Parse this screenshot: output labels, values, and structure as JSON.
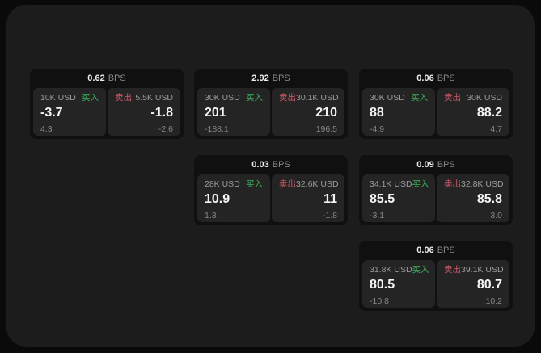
{
  "colors": {
    "buy_green": "#3fae5c",
    "sell_red": "#cf5a68",
    "panel_bg": "#1c1c1c",
    "card_bg": "#101011",
    "cell_bg": "#242425",
    "page_bg": "#0a0a0a"
  },
  "labels": {
    "buy": "买入",
    "sell": "卖出",
    "bps_suffix": "BPS"
  },
  "cards": [
    {
      "bps": "0.62",
      "col": 0,
      "row": 0,
      "buy": {
        "amount": "10K USD",
        "value": "-3.7",
        "delta": "4.3"
      },
      "sell": {
        "amount": "5.5K USD",
        "value": "-1.8",
        "delta": "-2.6"
      }
    },
    {
      "bps": "2.92",
      "col": 1,
      "row": 0,
      "buy": {
        "amount": "30K USD",
        "value": "201",
        "delta": "-188.1"
      },
      "sell": {
        "amount": "30.1K USD",
        "value": "210",
        "delta": "196.5"
      }
    },
    {
      "bps": "0.06",
      "col": 2,
      "row": 0,
      "buy": {
        "amount": "30K USD",
        "value": "88",
        "delta": "-4.9"
      },
      "sell": {
        "amount": "30K USD",
        "value": "88.2",
        "delta": "4.7"
      }
    },
    {
      "bps": "0.03",
      "col": 1,
      "row": 1,
      "buy": {
        "amount": "28K USD",
        "value": "10.9",
        "delta": "1.3"
      },
      "sell": {
        "amount": "32.6K USD",
        "value": "11",
        "delta": "-1.8"
      }
    },
    {
      "bps": "0.09",
      "col": 2,
      "row": 1,
      "buy": {
        "amount": "34.1K USD",
        "value": "85.5",
        "delta": "-3.1"
      },
      "sell": {
        "amount": "32.8K USD",
        "value": "85.8",
        "delta": "3.0"
      }
    },
    {
      "bps": "0.06",
      "col": 2,
      "row": 2,
      "buy": {
        "amount": "31.8K USD",
        "value": "80.5",
        "delta": "-10.8"
      },
      "sell": {
        "amount": "39.1K USD",
        "value": "80.7",
        "delta": "10.2"
      }
    }
  ]
}
